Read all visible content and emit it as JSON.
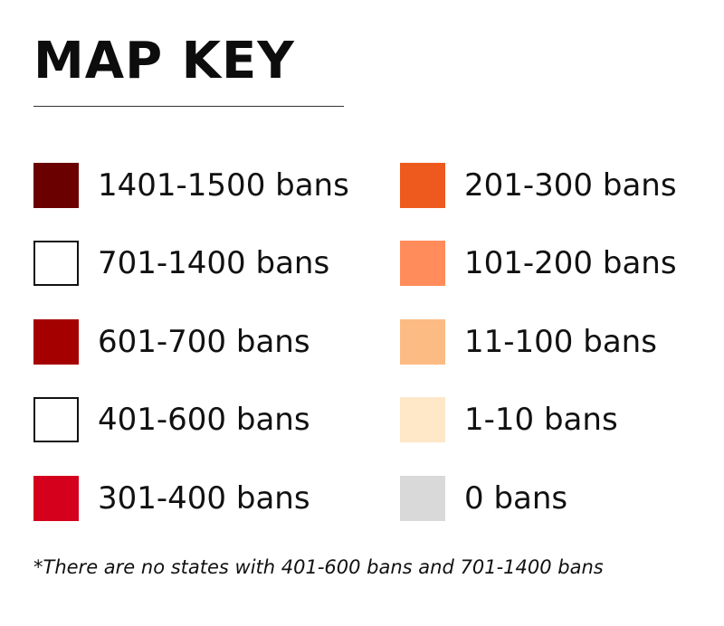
{
  "title": "MAP KEY",
  "legend": {
    "left_column": [
      {
        "label": "1401-1500 bans",
        "color": "#6b0000",
        "outlined": false
      },
      {
        "label": "701-1400 bans",
        "color": "#ffffff",
        "outlined": true
      },
      {
        "label": "601-700 bans",
        "color": "#a50000",
        "outlined": false
      },
      {
        "label": "401-600 bans",
        "color": "#ffffff",
        "outlined": true
      },
      {
        "label": "301-400 bans",
        "color": "#d4001c",
        "outlined": false
      }
    ],
    "right_column": [
      {
        "label": "201-300 bans",
        "color": "#ee5a1e",
        "outlined": false
      },
      {
        "label": "101-200 bans",
        "color": "#ff8c5a",
        "outlined": false
      },
      {
        "label": "11-100 bans",
        "color": "#fdbb84",
        "outlined": false
      },
      {
        "label": "1-10 bans",
        "color": "#fee8c8",
        "outlined": false
      },
      {
        "label": "0 bans",
        "color": "#d9d9d9",
        "outlined": false
      }
    ]
  },
  "footnote": "*There are no states with 401-600 bans and 701-1400 bans"
}
